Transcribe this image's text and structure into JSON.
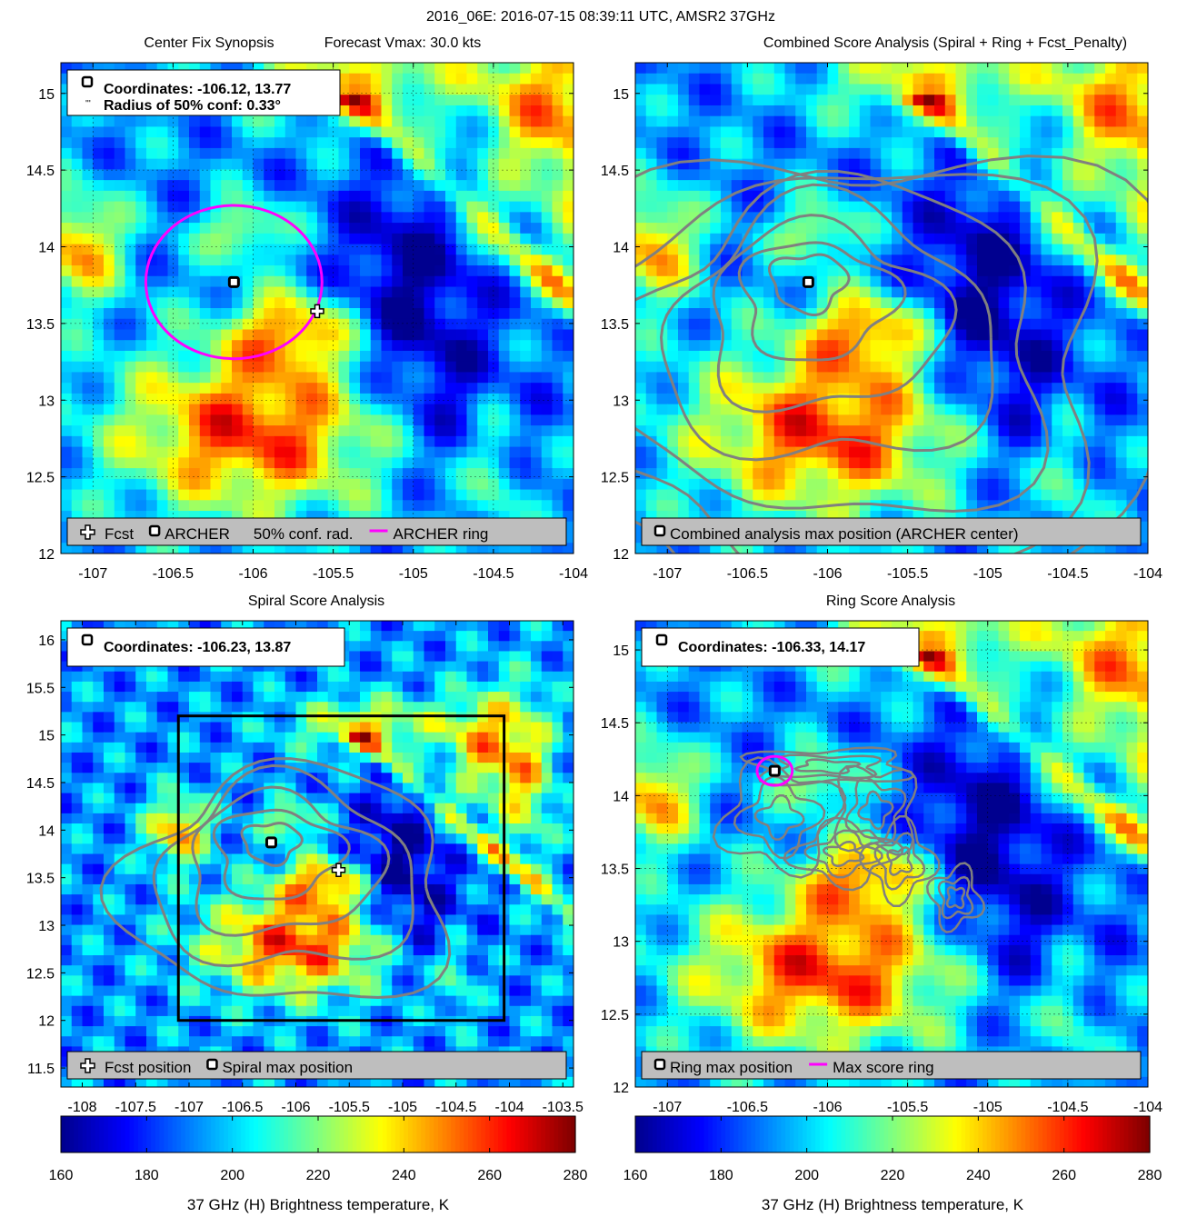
{
  "figure": {
    "suptitle": "2016_06E: 2016-07-15 08:39:11 UTC, AMSR2 37GHz"
  },
  "colors": {
    "archer_ring": "#ff00ff",
    "contour": "#808080",
    "legend_bg": "#bebebe",
    "box": "#000000"
  },
  "colormap": [
    "#00008f",
    "#0000ff",
    "#0080ff",
    "#00ffff",
    "#80ff80",
    "#ffff00",
    "#ff8000",
    "#ff0000",
    "#800000"
  ],
  "chart_data": [
    {
      "id": "center_fix",
      "type": "heatmap",
      "title_left": "Center Fix Synopsis",
      "title_right": "Forecast Vmax: 30.0 kts",
      "xlim": [
        -107.2,
        -104
      ],
      "ylim": [
        12,
        15.2
      ],
      "xticks": [
        -107,
        -106.5,
        -106,
        -105.5,
        -105,
        -104.5,
        -104
      ],
      "yticks": [
        12,
        12.5,
        13,
        13.5,
        14,
        14.5,
        15
      ],
      "grid": true,
      "infobox": [
        "Coordinates: -106.12, 13.77",
        "Radius of 50% conf: 0.33°"
      ],
      "archer_center": [
        -106.12,
        13.77
      ],
      "forecast_position": [
        -105.6,
        13.58
      ],
      "ring_radius_deg": 0.5,
      "legend": [
        {
          "marker": "plus",
          "label": "Fcst"
        },
        {
          "marker": "square",
          "label": "ARCHER"
        },
        {
          "marker": "none",
          "label": "50% conf. rad."
        },
        {
          "marker": "line",
          "label": "ARCHER ring"
        }
      ]
    },
    {
      "id": "combined",
      "type": "heatmap",
      "title": "Combined Score Analysis (Spiral + Ring + Fcst_Penalty)",
      "xlim": [
        -107.2,
        -104
      ],
      "ylim": [
        12,
        15.2
      ],
      "xticks": [
        -107,
        -106.5,
        -106,
        -105.5,
        -105,
        -104.5,
        -104
      ],
      "yticks": [
        12,
        12.5,
        13,
        13.5,
        14,
        14.5,
        15
      ],
      "grid": false,
      "center": [
        -106.12,
        13.77
      ],
      "legend": [
        {
          "marker": "square",
          "label": "Combined analysis max position (ARCHER center)"
        }
      ]
    },
    {
      "id": "spiral",
      "type": "heatmap",
      "title": "Spiral Score Analysis",
      "xlim": [
        -108.2,
        -103.4
      ],
      "ylim": [
        11.3,
        16.2
      ],
      "xticks": [
        -108,
        -107.5,
        -107,
        -106.5,
        -106,
        -105.5,
        -105,
        -104.5,
        -104,
        -103.5
      ],
      "yticks": [
        11.5,
        12,
        12.5,
        13,
        13.5,
        14,
        14.5,
        15,
        15.5,
        16
      ],
      "grid": false,
      "infobox": [
        "Coordinates: -106.23, 13.87"
      ],
      "center": [
        -106.23,
        13.87
      ],
      "forecast_position": [
        -105.6,
        13.58
      ],
      "search_box": {
        "x": [
          -107.1,
          -104.05
        ],
        "y": [
          12.0,
          15.2
        ]
      },
      "legend": [
        {
          "marker": "plus",
          "label": "Fcst position"
        },
        {
          "marker": "square",
          "label": "Spiral max position"
        }
      ]
    },
    {
      "id": "ring",
      "type": "heatmap",
      "title": "Ring Score Analysis",
      "xlim": [
        -107.2,
        -104
      ],
      "ylim": [
        12,
        15.2
      ],
      "xticks": [
        -107,
        -106.5,
        -106,
        -105.5,
        -105,
        -104.5,
        -104
      ],
      "yticks": [
        12,
        12.5,
        13,
        13.5,
        14,
        14.5,
        15
      ],
      "grid": true,
      "infobox": [
        "Coordinates: -106.33, 14.17"
      ],
      "center": [
        -106.33,
        14.17
      ],
      "ring_radius_deg": 0.1,
      "legend": [
        {
          "marker": "square",
          "label": "Ring max position"
        },
        {
          "marker": "line",
          "label": "Max score ring"
        }
      ]
    },
    {
      "id": "colorbar_left",
      "type": "colorbar",
      "range": [
        160,
        280
      ],
      "ticks": [
        160,
        180,
        200,
        220,
        240,
        260,
        280
      ],
      "label": "37 GHz (H) Brightness temperature, K"
    },
    {
      "id": "colorbar_right",
      "type": "colorbar",
      "range": [
        160,
        280
      ],
      "ticks": [
        160,
        180,
        200,
        220,
        240,
        260,
        280
      ],
      "label": "37 GHz (H) Brightness temperature, K"
    }
  ]
}
